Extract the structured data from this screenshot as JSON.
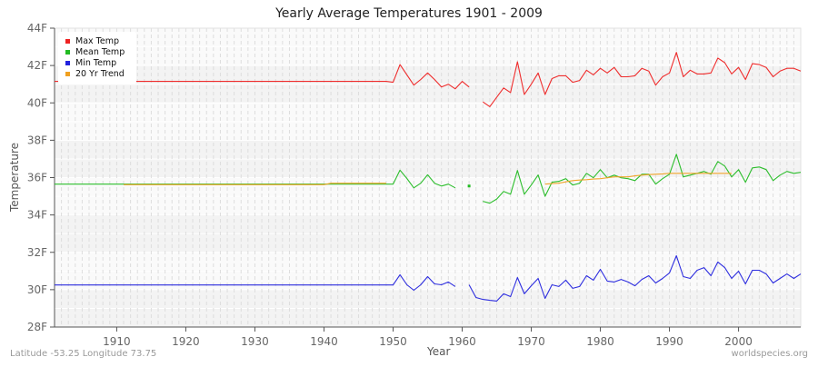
{
  "header": {
    "title": "Yearly Average Temperatures 1901 - 2009"
  },
  "footer": {
    "location": "Latitude -53.25 Longitude 73.75",
    "source": "worldspecies.org"
  },
  "axes": {
    "x_label": "Year",
    "y_label": "Temperature"
  },
  "legend": {
    "items": [
      {
        "label": "Max Temp",
        "color": "#ee2222"
      },
      {
        "label": "Mean Temp",
        "color": "#22bb22"
      },
      {
        "label": "Min Temp",
        "color": "#2222dd"
      },
      {
        "label": "20 Yr Trend",
        "color": "#f0a020"
      }
    ]
  },
  "colors": {
    "max": "#ee2222",
    "mean": "#22bb22",
    "min": "#2222dd",
    "trend": "#f0a020",
    "band_dark": "#f3f3f3",
    "band_light": "#fafafa",
    "grid": "#dddddd",
    "axis": "#555555"
  },
  "chart_data": {
    "type": "line",
    "title": "Yearly Average Temperatures 1901 - 2009",
    "xlabel": "Year",
    "ylabel": "Temperature",
    "xlim": [
      1901,
      2009
    ],
    "ylim": [
      28,
      44
    ],
    "x_ticks": [
      1910,
      1920,
      1930,
      1940,
      1950,
      1960,
      1970,
      1980,
      1990,
      2000
    ],
    "y_ticks": [
      "28F",
      "30F",
      "32F",
      "34F",
      "36F",
      "38F",
      "40F",
      "42F",
      "44F"
    ],
    "y_tick_values": [
      28,
      30,
      32,
      34,
      36,
      38,
      40,
      42,
      44
    ],
    "grid": true,
    "legend_position": "top-left",
    "series": [
      {
        "name": "Max Temp",
        "color": "#ee2222",
        "segments": [
          {
            "start": 1901,
            "values": [
              41.15,
              41.15,
              41.15,
              41.15,
              41.15,
              41.15,
              41.15,
              41.15,
              41.15,
              41.15,
              41.15,
              41.15,
              41.15,
              41.15,
              41.15,
              41.15,
              41.15,
              41.15,
              41.15,
              41.15,
              41.15,
              41.15,
              41.15,
              41.15,
              41.15,
              41.15,
              41.15,
              41.15,
              41.15,
              41.15,
              41.15,
              41.15,
              41.15,
              41.15,
              41.15,
              41.15,
              41.15,
              41.15,
              41.15,
              41.15,
              41.15,
              41.15,
              41.15,
              41.15,
              41.15,
              41.15,
              41.15,
              41.15,
              41.15,
              41.1,
              42.05,
              41.5,
              40.95,
              41.25,
              41.6,
              41.25,
              40.85,
              41.0,
              40.75,
              41.15,
              40.85
            ]
          },
          {
            "start": 1963,
            "values": [
              40.05,
              39.8,
              40.3,
              40.8,
              40.55,
              42.2,
              40.45,
              41.0,
              41.6,
              40.45,
              41.3,
              41.45,
              41.45,
              41.1,
              41.2,
              41.75,
              41.5,
              41.85,
              41.6,
              41.9,
              41.4,
              41.4,
              41.45,
              41.85,
              41.7,
              40.95,
              41.4,
              41.6,
              42.7,
              41.4,
              41.75,
              41.55,
              41.55,
              41.6,
              42.4,
              42.15,
              41.55,
              41.9,
              41.25,
              42.1,
              42.05,
              41.9,
              41.4,
              41.7,
              41.85,
              41.85,
              41.7
            ]
          }
        ]
      },
      {
        "name": "Mean Temp",
        "color": "#22bb22",
        "segments": [
          {
            "start": 1901,
            "values": [
              35.65,
              35.65,
              35.65,
              35.65,
              35.65,
              35.65,
              35.65,
              35.65,
              35.65,
              35.65,
              35.65,
              35.65,
              35.65,
              35.65,
              35.65,
              35.65,
              35.65,
              35.65,
              35.65,
              35.65,
              35.65,
              35.65,
              35.65,
              35.65,
              35.65,
              35.65,
              35.65,
              35.65,
              35.65,
              35.65,
              35.65,
              35.65,
              35.65,
              35.65,
              35.65,
              35.65,
              35.65,
              35.65,
              35.65,
              35.65,
              35.65,
              35.65,
              35.65,
              35.65,
              35.65,
              35.65,
              35.65,
              35.65,
              35.65,
              35.65,
              36.4,
              35.95,
              35.45,
              35.7,
              36.15,
              35.7,
              35.55,
              35.65,
              35.45
            ]
          },
          {
            "start": 1961,
            "values": [
              35.55
            ]
          },
          {
            "start": 1963,
            "values": [
              34.73,
              34.63,
              34.85,
              35.26,
              35.11,
              36.38,
              35.11,
              35.6,
              36.14,
              35.0,
              35.75,
              35.8,
              35.94,
              35.6,
              35.7,
              36.23,
              35.99,
              36.43,
              35.99,
              36.13,
              35.99,
              35.94,
              35.84,
              36.18,
              36.18,
              35.65,
              35.94,
              36.18,
              37.25,
              36.04,
              36.13,
              36.23,
              36.33,
              36.18,
              36.86,
              36.62,
              36.04,
              36.43,
              35.75,
              36.52,
              36.57,
              36.43,
              35.84,
              36.13,
              36.33,
              36.23,
              36.28
            ]
          }
        ]
      },
      {
        "name": "Min Temp",
        "color": "#2222dd",
        "segments": [
          {
            "start": 1901,
            "values": [
              30.25,
              30.25,
              30.25,
              30.25,
              30.25,
              30.25,
              30.25,
              30.25,
              30.25,
              30.25,
              30.25,
              30.25,
              30.25,
              30.25,
              30.25,
              30.25,
              30.25,
              30.25,
              30.25,
              30.25,
              30.25,
              30.25,
              30.25,
              30.25,
              30.25,
              30.25,
              30.25,
              30.25,
              30.25,
              30.25,
              30.25,
              30.25,
              30.25,
              30.25,
              30.25,
              30.25,
              30.25,
              30.25,
              30.25,
              30.25,
              30.25,
              30.25,
              30.25,
              30.25,
              30.25,
              30.25,
              30.25,
              30.25,
              30.25,
              30.25,
              30.8,
              30.26,
              29.97,
              30.26,
              30.7,
              30.31,
              30.26,
              30.41,
              30.17
            ]
          },
          {
            "start": 1961,
            "values": [
              30.26,
              29.58,
              29.48,
              29.43,
              29.39,
              29.78,
              29.63,
              30.65,
              29.78,
              30.21,
              30.6,
              29.53,
              30.26,
              30.17,
              30.51,
              30.07,
              30.17,
              30.75,
              30.51,
              31.09,
              30.46,
              30.41,
              30.55,
              30.41,
              30.21,
              30.55,
              30.75,
              30.36,
              30.6,
              30.9,
              31.82,
              30.7,
              30.6,
              31.04,
              31.18,
              30.75,
              31.48,
              31.18,
              30.6,
              30.99,
              30.31,
              31.04,
              31.04,
              30.84,
              30.36,
              30.6,
              30.84,
              30.6,
              30.84
            ]
          }
        ]
      },
      {
        "name": "20 Yr Trend",
        "color": "#f0a020",
        "segments": [
          {
            "start": 1911,
            "values": [
              35.62,
              35.62,
              35.62,
              35.62,
              35.62,
              35.62,
              35.62,
              35.62,
              35.62,
              35.62,
              35.62,
              35.62,
              35.62,
              35.62,
              35.62,
              35.62,
              35.62,
              35.62,
              35.62,
              35.62,
              35.62,
              35.62,
              35.62,
              35.62,
              35.62,
              35.62,
              35.62,
              35.62,
              35.62,
              35.62,
              35.7,
              35.7,
              35.7,
              35.7,
              35.7,
              35.7,
              35.7,
              35.7,
              35.7
            ]
          },
          {
            "start": 1972,
            "values": [
              35.65,
              35.68,
              35.7,
              35.77,
              35.84,
              35.87,
              35.89,
              35.92,
              35.94,
              35.99,
              36.04,
              36.04,
              36.04,
              36.09,
              36.13,
              36.16,
              36.18,
              36.2,
              36.23,
              36.23,
              36.23,
              36.23,
              36.23,
              36.23,
              36.23,
              36.23,
              36.23,
              36.23
            ]
          }
        ]
      }
    ]
  }
}
